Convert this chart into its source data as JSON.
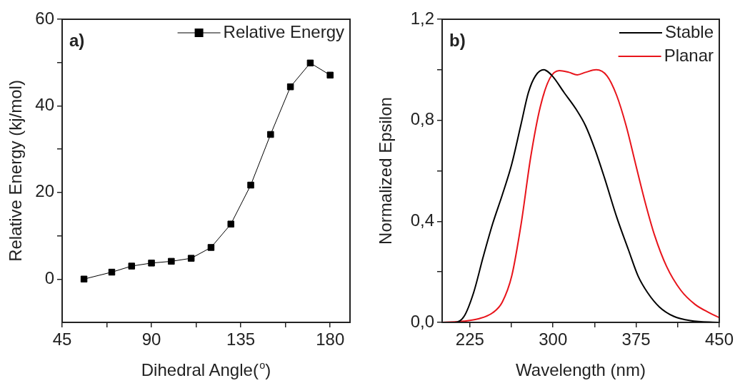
{
  "chart_data": [
    {
      "type": "line",
      "annotations": [
        "a)"
      ],
      "xlabel": "Dihedral Angle($^{o}$)",
      "ylabel": "Relative Energy (kj/mol)",
      "x": [
        56,
        70,
        80,
        90,
        100,
        110,
        120,
        130,
        140,
        150,
        160,
        170,
        180
      ],
      "series": [
        {
          "name": "Relative Energy",
          "color": "#000000",
          "values": [
            0,
            1.6,
            3.0,
            3.7,
            4.1,
            4.8,
            7.3,
            12.7,
            21.7,
            33.4,
            44.4,
            49.9,
            47.1
          ]
        }
      ],
      "xlim": [
        45,
        190
      ],
      "ylim": [
        -10,
        60
      ],
      "xticks": [
        45,
        {
          "value": 67.5,
          "label": null
        },
        90,
        {
          "value": 112.5,
          "label": null
        },
        135,
        {
          "value": 157.5,
          "label": null
        },
        180
      ],
      "yticks": [
        0,
        {
          "value": 10,
          "label": null
        },
        20,
        {
          "value": 30,
          "label": null
        },
        40,
        {
          "value": 50,
          "label": null
        },
        60
      ],
      "legend": "top right",
      "marker": "square",
      "line_style": "solid"
    },
    {
      "type": "line",
      "annotations": [
        "b)"
      ],
      "xlabel": "Wavelength (nm)",
      "ylabel": "Normalized Epsilon",
      "series": [
        {
          "name": "Stable",
          "color": "#000000",
          "x": [
            200,
            211.2,
            219.8,
            228.4,
            237,
            245.6,
            254.2,
            262.8,
            271.3,
            277.8,
            284.2,
            291.8,
            299.3,
            310,
            320.8,
            329.4,
            338,
            346.6,
            357.3,
            368,
            376.7,
            385.3,
            396,
            408.9,
            423.9,
            450
          ],
          "values": [
            0,
            0,
            0.024,
            0.118,
            0.259,
            0.391,
            0.504,
            0.627,
            0.787,
            0.91,
            0.976,
            1.0,
            0.976,
            0.91,
            0.844,
            0.778,
            0.683,
            0.57,
            0.419,
            0.288,
            0.184,
            0.118,
            0.061,
            0.024,
            0.007,
            0
          ]
        },
        {
          "name": "Planar",
          "color": "#e8141b",
          "x": [
            200,
            219.8,
            232.7,
            245.6,
            254.2,
            262.8,
            271.3,
            279.9,
            288.5,
            297.1,
            305.7,
            314.3,
            321.9,
            329.4,
            339,
            348.7,
            357.3,
            366,
            374.5,
            383.1,
            391.7,
            402.4,
            415.3,
            428.2,
            441.1,
            450
          ],
          "values": [
            0,
            0.005,
            0.014,
            0.038,
            0.08,
            0.184,
            0.391,
            0.655,
            0.853,
            0.966,
            0.997,
            0.99,
            0.98,
            0.99,
            1.0,
            0.976,
            0.9,
            0.778,
            0.627,
            0.476,
            0.344,
            0.222,
            0.127,
            0.071,
            0.038,
            0.019
          ]
        }
      ],
      "xlim": [
        200,
        450
      ],
      "ylim": [
        0,
        1.2
      ],
      "xticks": [
        225,
        {
          "value": 262.5,
          "label": null
        },
        300,
        {
          "value": 337.5,
          "label": null
        },
        375,
        {
          "value": 412.5,
          "label": null
        },
        450
      ],
      "yticks": [
        {
          "value": 0,
          "label": "0,0"
        },
        {
          "value": 0.2,
          "label": null
        },
        {
          "value": 0.4,
          "label": "0,4"
        },
        {
          "value": 0.6,
          "label": null
        },
        {
          "value": 0.8,
          "label": "0,8"
        },
        {
          "value": 1.0,
          "label": null
        },
        {
          "value": 1.2,
          "label": "1,2"
        }
      ],
      "legend": "top right",
      "marker": "none",
      "line_style": "solid"
    }
  ]
}
